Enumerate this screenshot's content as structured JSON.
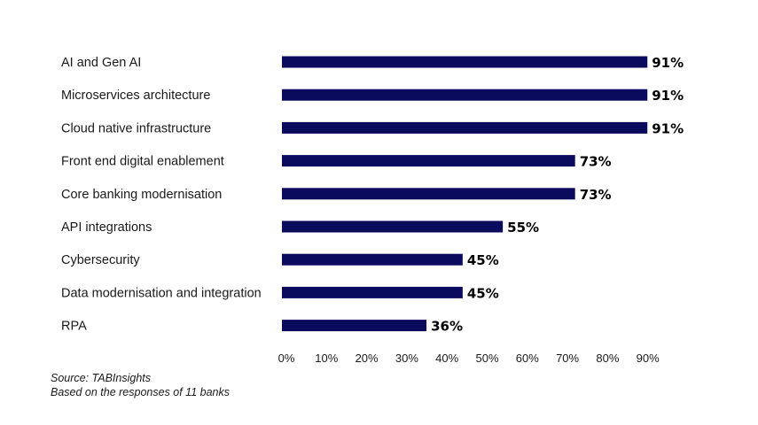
{
  "chart_data": {
    "type": "bar",
    "orientation": "horizontal",
    "categories": [
      "AI and Gen AI",
      "Microservices architecture",
      "Cloud native infrastructure",
      "Front end digital enablement",
      "Core banking modernisation",
      "API integrations",
      "Cybersecurity",
      "Data modernisation and integration",
      "RPA"
    ],
    "values": [
      91,
      91,
      91,
      73,
      73,
      55,
      45,
      45,
      36
    ],
    "value_labels": [
      "91%",
      "91%",
      "91%",
      "73%",
      "73%",
      "55%",
      "45%",
      "45%",
      "36%"
    ],
    "xlim": [
      0,
      90
    ],
    "x_ticks": [
      "0%",
      "10%",
      "20%",
      "30%",
      "40%",
      "50%",
      "60%",
      "70%",
      "80%",
      "90%"
    ],
    "title": "",
    "xlabel": "",
    "ylabel": "",
    "grid": false,
    "bar_color": "#0b0b5e"
  },
  "notes": {
    "source": "Source: TABInsights",
    "basis": "Based on the responses of 11 banks"
  }
}
